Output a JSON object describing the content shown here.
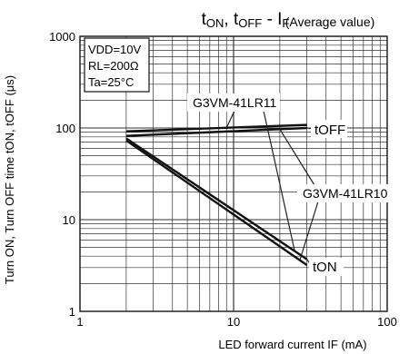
{
  "chart_data": {
    "type": "line",
    "title": "tON, tOFF - IF",
    "title_parts": {
      "t1": "t",
      "s1": "ON",
      "sep1": ", ",
      "t2": "t",
      "s2": "OFF",
      "sep2": " - ",
      "t3": "I",
      "s3": "F"
    },
    "subtitle": "(Average value)",
    "xlabel": "LED forward current IF (mA)",
    "ylabel": "Turn ON, Turn OFF time tON, tOFF (μs)",
    "x_scale": "log",
    "y_scale": "log",
    "xlim": [
      1,
      100
    ],
    "ylim": [
      1,
      1000
    ],
    "x_ticks": [
      1,
      10,
      100
    ],
    "x_tick_labels": [
      "1",
      "10",
      "100"
    ],
    "y_ticks": [
      1,
      10,
      100,
      1000
    ],
    "y_tick_labels": [
      "1",
      "10",
      "100",
      "1000"
    ],
    "grid": true,
    "conditions": [
      "VDD=10V",
      "RL=200Ω",
      "Ta=25°C"
    ],
    "series": [
      {
        "group": "tOFF",
        "device": "G3VM-41LR11",
        "x": [
          2,
          30
        ],
        "y": [
          92,
          108
        ]
      },
      {
        "group": "tOFF",
        "device": "G3VM-41LR10",
        "x": [
          2,
          30
        ],
        "y": [
          82,
          100
        ]
      },
      {
        "group": "tON",
        "device": "G3VM-41LR11",
        "x": [
          2,
          30
        ],
        "y": [
          77,
          3.7
        ]
      },
      {
        "group": "tON",
        "device": "G3VM-41LR10",
        "x": [
          2,
          30
        ],
        "y": [
          73,
          3.2
        ]
      }
    ],
    "annotations": {
      "toff_label": "tOFF",
      "ton_label": "tON",
      "device_a": "G3VM-41LR11",
      "device_b": "G3VM-41LR10"
    }
  }
}
